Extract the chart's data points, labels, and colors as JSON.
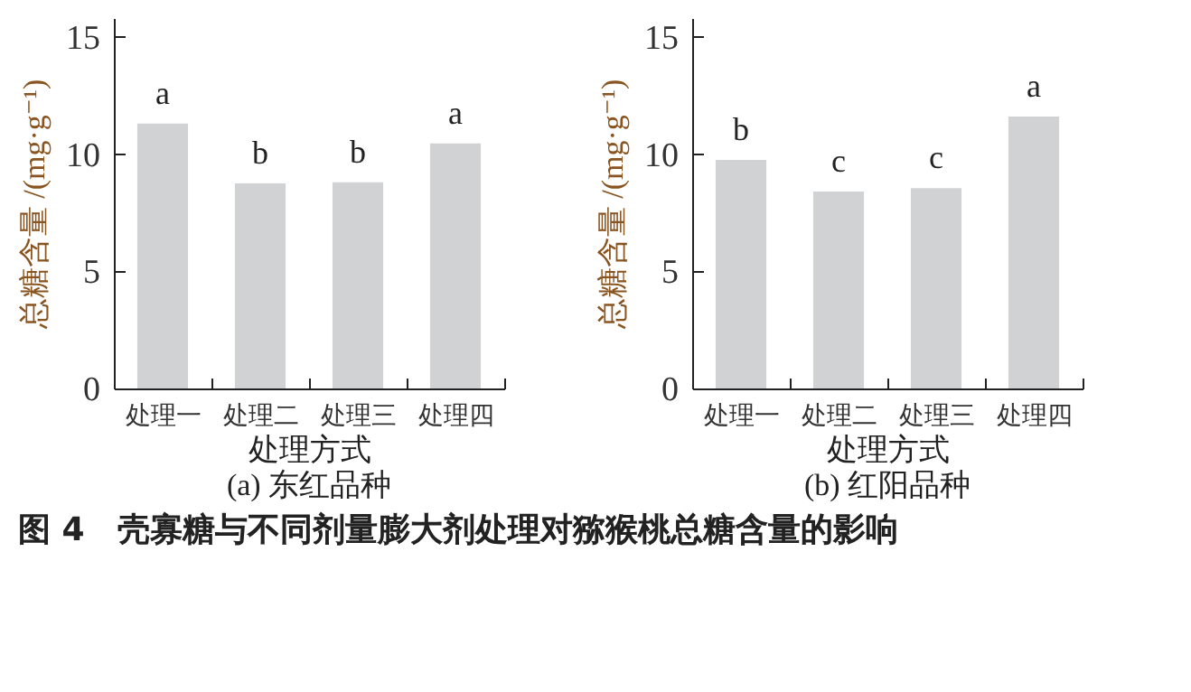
{
  "chart_data": [
    {
      "type": "bar",
      "title": "(a) 东红品种",
      "xlabel": "处理方式",
      "ylabel": "总糖含量 /(mg·g⁻¹)",
      "categories": [
        "处理一",
        "处理二",
        "处理三",
        "处理四"
      ],
      "values": [
        11.3,
        8.75,
        8.8,
        10.45
      ],
      "color": "#d1d2d4",
      "ylim": [
        0,
        15.8
      ],
      "yticks": [
        0,
        5,
        10,
        15
      ],
      "annotations": [
        {
          "text": "a",
          "x": "处理一",
          "y": 11.3
        },
        {
          "text": "b",
          "x": "处理二",
          "y": 8.75
        },
        {
          "text": "b",
          "x": "处理三",
          "y": 8.8
        },
        {
          "text": "a",
          "x": "处理四",
          "y": 10.45
        },
        "图 4　壳寡糖与不同剂量膨大剂处理对猕猴桃总糖含量的影响"
      ]
    },
    {
      "type": "bar",
      "title": "(b) 红阳品种",
      "xlabel": "处理方式",
      "ylabel": "总糖含量 /(mg·g⁻¹)",
      "categories": [
        "处理一",
        "处理二",
        "处理三",
        "处理四"
      ],
      "values": [
        9.75,
        8.4,
        8.55,
        11.6
      ],
      "color": "#d1d2d4",
      "ylim": [
        0,
        15.8
      ],
      "yticks": [
        0,
        5,
        10,
        15
      ],
      "annotations": [
        {
          "text": "b",
          "x": "处理一",
          "y": 9.75
        },
        {
          "text": "c",
          "x": "处理二",
          "y": 8.4
        },
        {
          "text": "c",
          "x": "处理三",
          "y": 8.55
        },
        {
          "text": "a",
          "x": "处理四",
          "y": 11.6
        }
      ]
    }
  ]
}
